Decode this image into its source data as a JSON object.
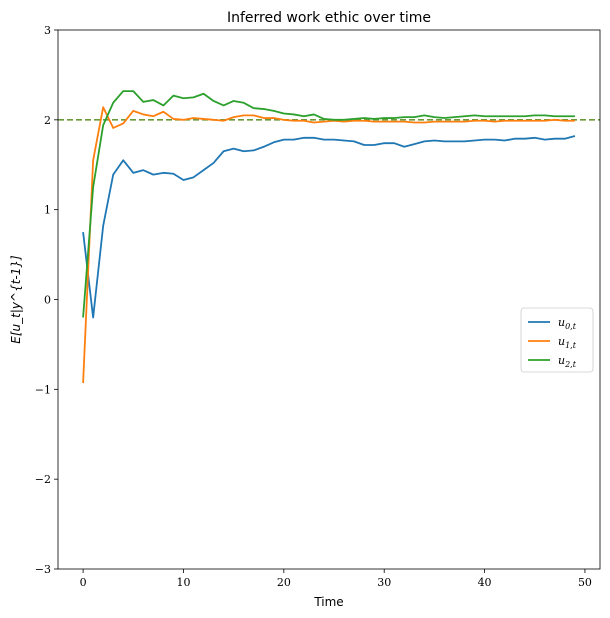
{
  "chart_data": {
    "type": "line",
    "title": "Inferred work ethic over time",
    "xlabel": "Time",
    "ylabel": "E[u_t|y^{t-1}]",
    "xlim": [
      -2.5,
      51.5
    ],
    "ylim": [
      -3,
      3
    ],
    "xticks": [
      0,
      10,
      20,
      30,
      40,
      50
    ],
    "yticks": [
      -3,
      -2,
      -1,
      0,
      1,
      2,
      3
    ],
    "xtick_labels": [
      "0",
      "10",
      "20",
      "30",
      "40",
      "50"
    ],
    "ytick_labels": [
      "−3",
      "−2",
      "−1",
      "0",
      "1",
      "2",
      "3"
    ],
    "grid": false,
    "legend_position": "center-right",
    "reference_line": {
      "y": 2,
      "style": "dashed",
      "color": "#6a9a3a"
    },
    "series": [
      {
        "name": "u_{0,t}",
        "legend_label": "u",
        "legend_sub": "0,t",
        "color": "#1f77b4",
        "x": [
          0,
          1,
          2,
          3,
          4,
          5,
          6,
          7,
          8,
          9,
          10,
          11,
          12,
          13,
          14,
          15,
          16,
          17,
          18,
          19,
          20,
          21,
          22,
          23,
          24,
          25,
          26,
          27,
          28,
          29,
          30,
          31,
          32,
          33,
          34,
          35,
          36,
          37,
          38,
          39,
          40,
          41,
          42,
          43,
          44,
          45,
          46,
          47,
          48,
          49
        ],
        "values": [
          0.75,
          -0.2,
          0.82,
          1.39,
          1.55,
          1.41,
          1.44,
          1.39,
          1.41,
          1.4,
          1.33,
          1.36,
          1.44,
          1.52,
          1.65,
          1.68,
          1.65,
          1.66,
          1.7,
          1.75,
          1.78,
          1.78,
          1.8,
          1.8,
          1.78,
          1.78,
          1.77,
          1.76,
          1.72,
          1.72,
          1.74,
          1.74,
          1.7,
          1.73,
          1.76,
          1.77,
          1.76,
          1.76,
          1.76,
          1.77,
          1.78,
          1.78,
          1.77,
          1.79,
          1.79,
          1.8,
          1.78,
          1.79,
          1.79,
          1.82
        ]
      },
      {
        "name": "u_{1,t}",
        "legend_label": "u",
        "legend_sub": "1,t",
        "color": "#ff7f0e",
        "x": [
          0,
          1,
          2,
          3,
          4,
          5,
          6,
          7,
          8,
          9,
          10,
          11,
          12,
          13,
          14,
          15,
          16,
          17,
          18,
          19,
          20,
          21,
          22,
          23,
          24,
          25,
          26,
          27,
          28,
          29,
          30,
          31,
          32,
          33,
          34,
          35,
          36,
          37,
          38,
          39,
          40,
          41,
          42,
          43,
          44,
          45,
          46,
          47,
          48,
          49
        ],
        "values": [
          -0.93,
          1.55,
          2.14,
          1.91,
          1.96,
          2.1,
          2.06,
          2.04,
          2.09,
          2.01,
          2.0,
          2.02,
          2.01,
          2.0,
          1.99,
          2.03,
          2.05,
          2.05,
          2.02,
          2.02,
          2.0,
          1.99,
          1.99,
          1.97,
          1.98,
          1.99,
          1.98,
          1.99,
          1.99,
          1.98,
          1.98,
          1.98,
          1.98,
          1.97,
          1.97,
          1.98,
          1.98,
          1.98,
          1.98,
          1.99,
          1.99,
          1.98,
          1.99,
          1.99,
          1.99,
          1.99,
          1.99,
          2.0,
          1.99,
          1.99
        ]
      },
      {
        "name": "u_{2,t}",
        "legend_label": "u",
        "legend_sub": "2,t",
        "color": "#2ca02c",
        "x": [
          0,
          1,
          2,
          3,
          4,
          5,
          6,
          7,
          8,
          9,
          10,
          11,
          12,
          13,
          14,
          15,
          16,
          17,
          18,
          19,
          20,
          21,
          22,
          23,
          24,
          25,
          26,
          27,
          28,
          29,
          30,
          31,
          32,
          33,
          34,
          35,
          36,
          37,
          38,
          39,
          40,
          41,
          42,
          43,
          44,
          45,
          46,
          47,
          48,
          49
        ],
        "values": [
          -0.2,
          1.25,
          1.94,
          2.19,
          2.32,
          2.32,
          2.2,
          2.22,
          2.16,
          2.27,
          2.24,
          2.25,
          2.29,
          2.21,
          2.16,
          2.21,
          2.19,
          2.13,
          2.12,
          2.1,
          2.07,
          2.06,
          2.04,
          2.06,
          2.01,
          2.0,
          2.0,
          2.01,
          2.02,
          2.01,
          2.02,
          2.02,
          2.03,
          2.03,
          2.05,
          2.03,
          2.02,
          2.03,
          2.04,
          2.05,
          2.04,
          2.04,
          2.04,
          2.04,
          2.04,
          2.05,
          2.05,
          2.04,
          2.04,
          2.04
        ]
      }
    ]
  }
}
